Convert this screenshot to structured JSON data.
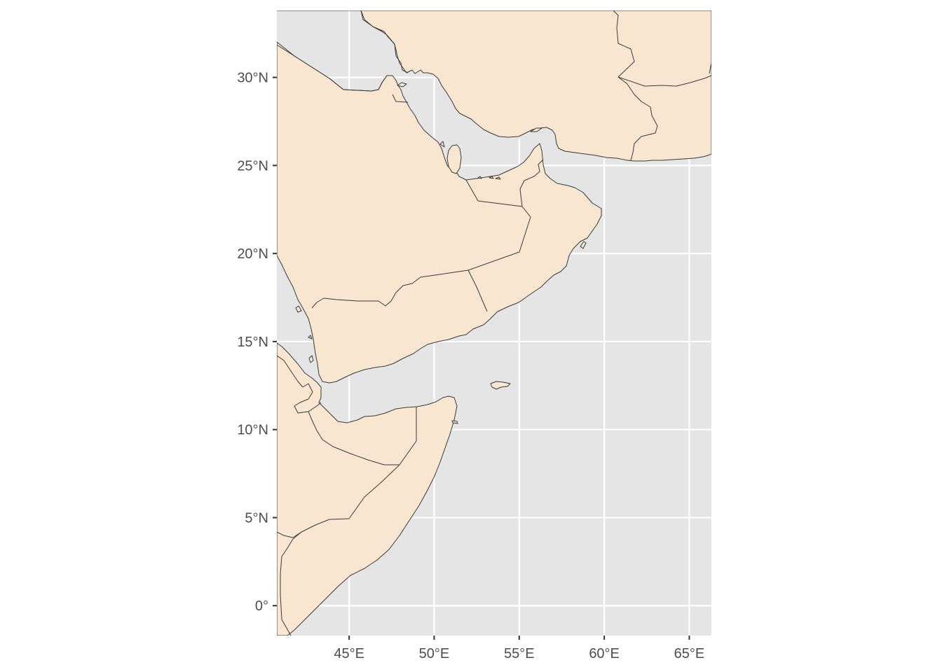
{
  "map": {
    "projection": "lon-lat",
    "colors": {
      "panel": "#e5e5e5",
      "land": "#f8e6d0",
      "border": "#3a3a3a",
      "grid": "#ffffff",
      "tick_text": "#4d4d4d"
    },
    "extent": {
      "lon": [
        40.75,
        66.3
      ],
      "lat": [
        -1.7,
        33.8
      ]
    },
    "x_ticks": [
      {
        "value": 45,
        "label": "45°E"
      },
      {
        "value": 50,
        "label": "50°E"
      },
      {
        "value": 55,
        "label": "55°E"
      },
      {
        "value": 60,
        "label": "60°E"
      },
      {
        "value": 65,
        "label": "65°E"
      }
    ],
    "y_ticks": [
      {
        "value": 0,
        "label": "0°"
      },
      {
        "value": 5,
        "label": "5°N"
      },
      {
        "value": 10,
        "label": "10°N"
      },
      {
        "value": 15,
        "label": "15°N"
      },
      {
        "value": 20,
        "label": "20°N"
      },
      {
        "value": 25,
        "label": "25°N"
      },
      {
        "value": 30,
        "label": "30°N"
      }
    ]
  }
}
